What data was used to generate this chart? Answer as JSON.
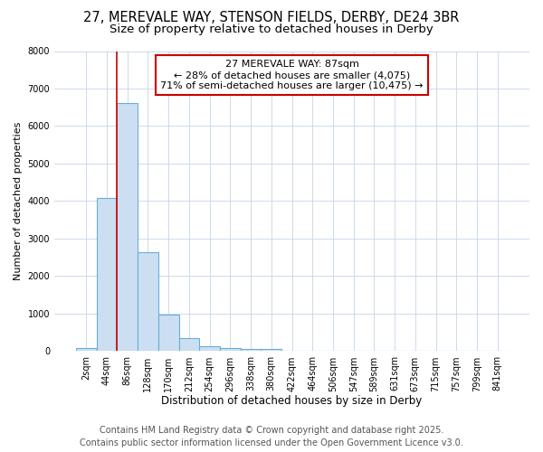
{
  "title": "27, MEREVALE WAY, STENSON FIELDS, DERBY, DE24 3BR",
  "subtitle": "Size of property relative to detached houses in Derby",
  "xlabel": "Distribution of detached houses by size in Derby",
  "ylabel": "Number of detached properties",
  "bar_labels": [
    "2sqm",
    "44sqm",
    "86sqm",
    "128sqm",
    "170sqm",
    "212sqm",
    "254sqm",
    "296sqm",
    "338sqm",
    "380sqm",
    "422sqm",
    "464sqm",
    "506sqm",
    "547sqm",
    "589sqm",
    "631sqm",
    "673sqm",
    "715sqm",
    "757sqm",
    "799sqm",
    "841sqm"
  ],
  "bar_values": [
    75,
    4075,
    6625,
    2650,
    975,
    350,
    125,
    75,
    50,
    50,
    0,
    0,
    0,
    0,
    0,
    0,
    0,
    0,
    0,
    0,
    0
  ],
  "bar_color": "#ccdff2",
  "bar_edgecolor": "#6aaed6",
  "bar_linewidth": 0.8,
  "grid_color": "#c5d5e8",
  "background_color": "#ffffff",
  "vline_x_index": 2,
  "vline_color": "#cc0000",
  "vline_linewidth": 1.2,
  "annotation_text": "27 MEREVALE WAY: 87sqm\n← 28% of detached houses are smaller (4,075)\n71% of semi-detached houses are larger (10,475) →",
  "annotation_box_color": "#cc0000",
  "annotation_text_color": "#000000",
  "ylim": [
    0,
    8000
  ],
  "yticks": [
    0,
    1000,
    2000,
    3000,
    4000,
    5000,
    6000,
    7000,
    8000
  ],
  "footer_line1": "Contains HM Land Registry data © Crown copyright and database right 2025.",
  "footer_line2": "Contains public sector information licensed under the Open Government Licence v3.0.",
  "footer_fontsize": 7,
  "title_fontsize": 10.5,
  "subtitle_fontsize": 9.5,
  "xlabel_fontsize": 8.5,
  "ylabel_fontsize": 8,
  "tick_fontsize": 7,
  "ann_fontsize": 8
}
